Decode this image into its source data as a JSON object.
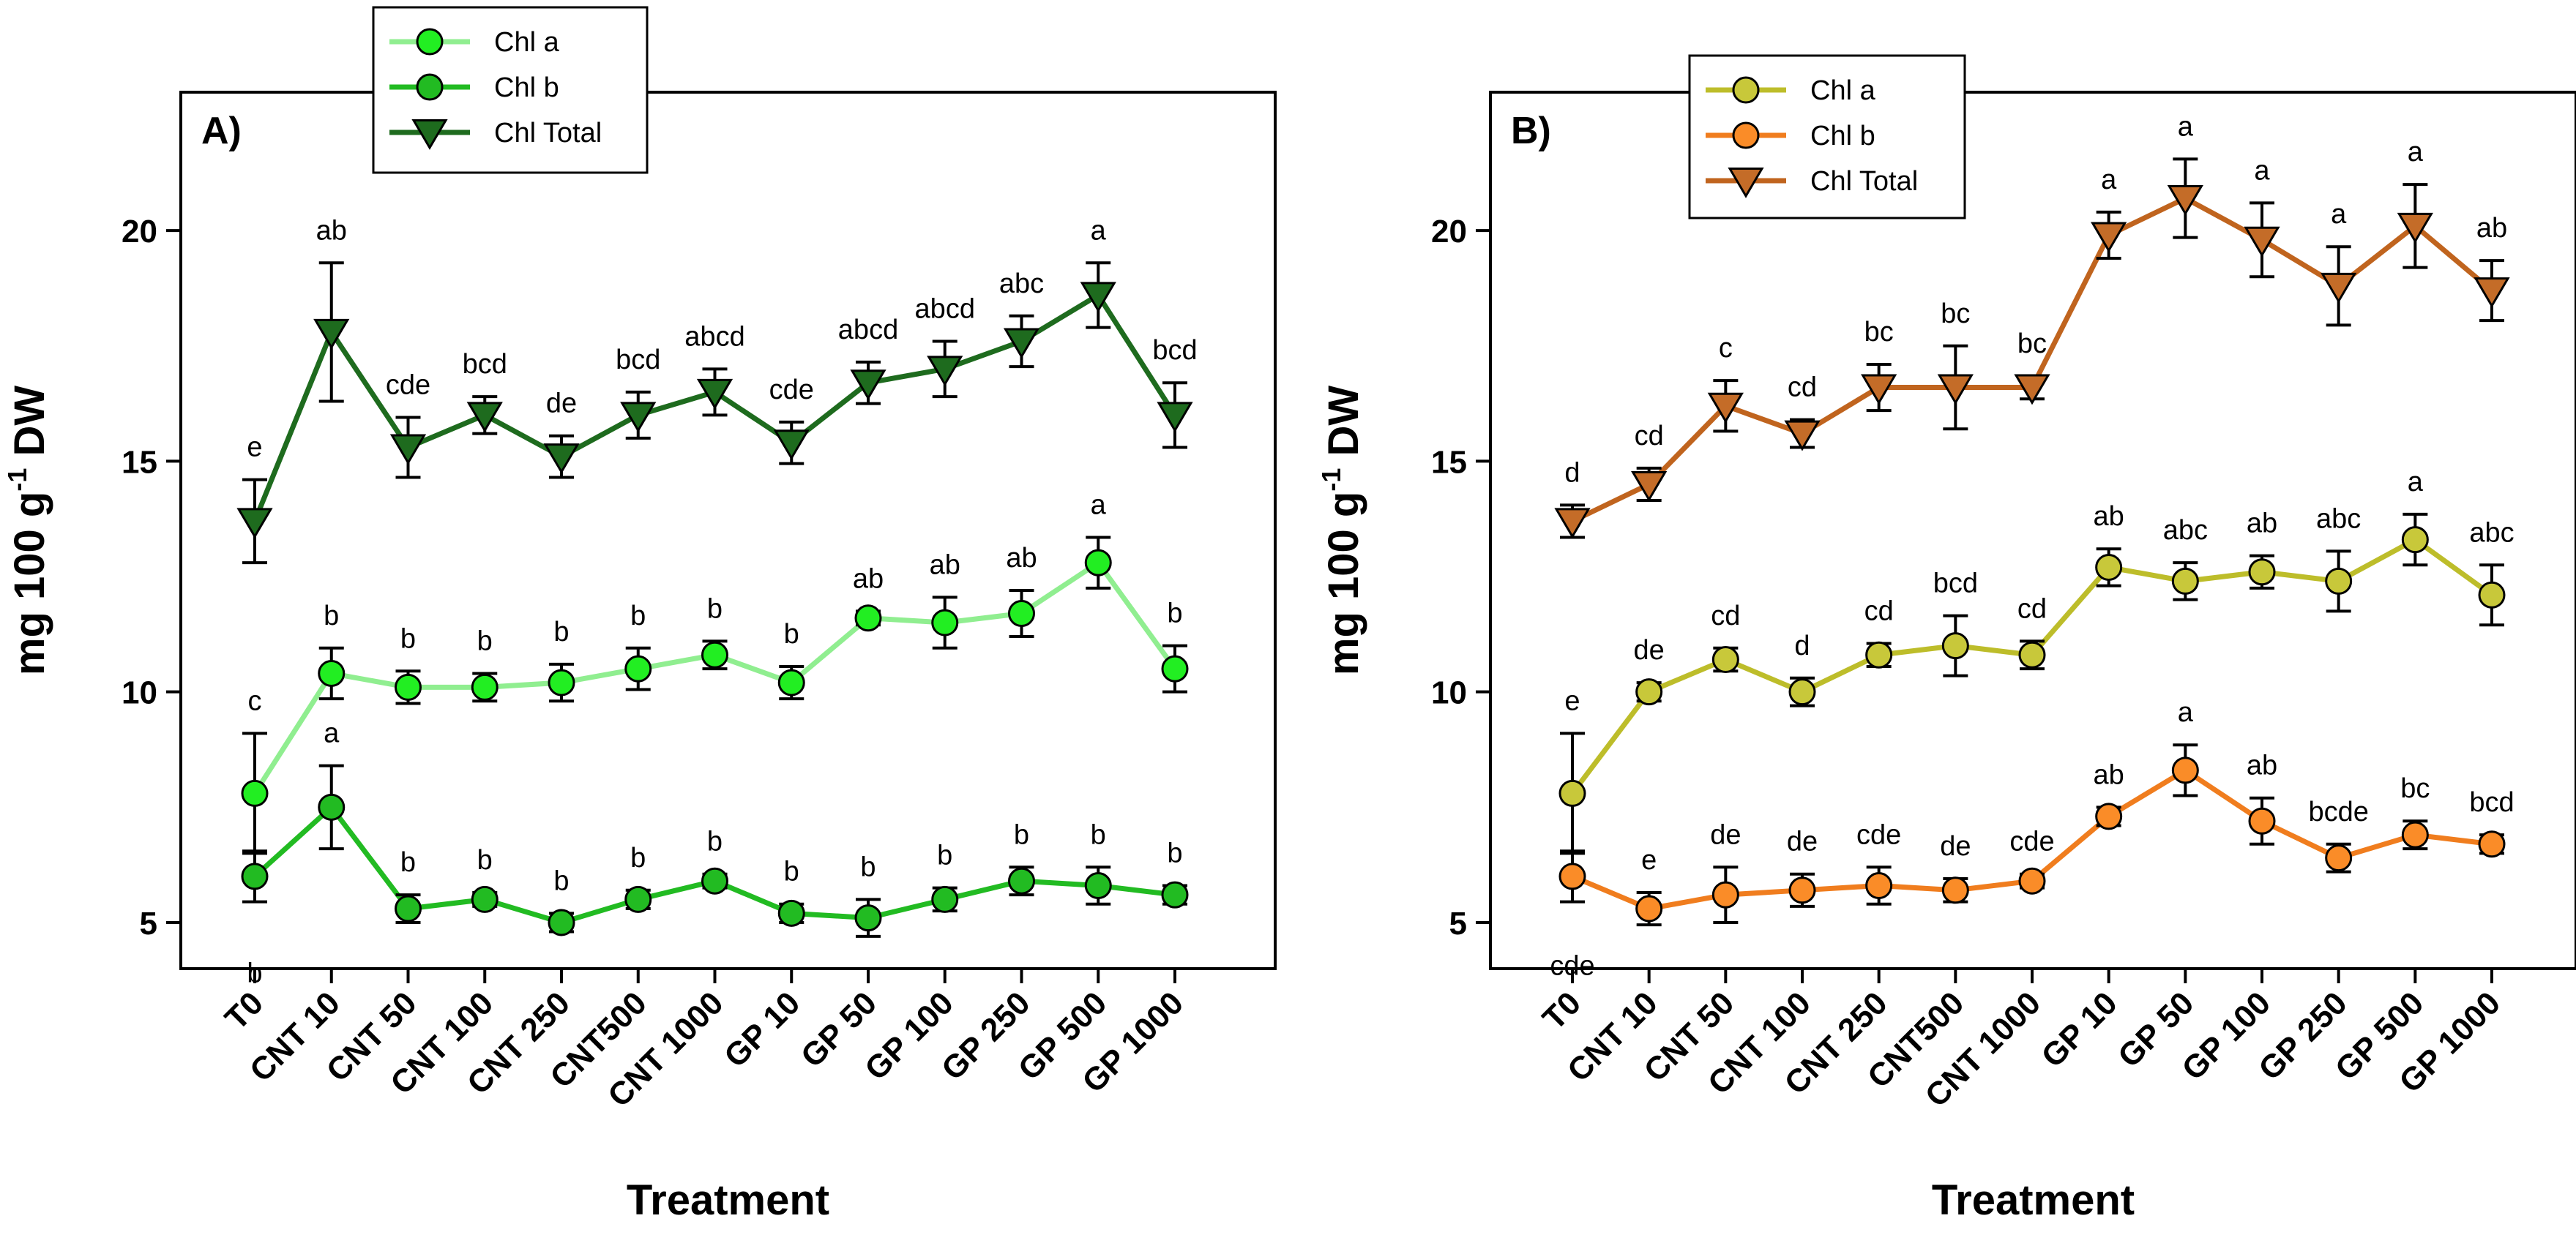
{
  "chart_data": [
    {
      "type": "line",
      "panel_label": "A)",
      "ylabel_main": "mg 100 g",
      "ylabel_sup": "-1",
      "ylabel_end": " DW",
      "xlabel": "Treatment",
      "ylim": [
        4,
        23
      ],
      "yticks": [
        5,
        10,
        15,
        20
      ],
      "categories": [
        "T0",
        "CNT 10",
        "CNT 50",
        "CNT 100",
        "CNT 250",
        "CNT500",
        "CNT 1000",
        "GP 10",
        "GP 50",
        "GP 100",
        "GP 250",
        "GP 500",
        "GP 1000"
      ],
      "legend_position": "top-left-outside",
      "series": [
        {
          "name": "Chl a",
          "marker": "circle",
          "line_color": "#90ee90",
          "marker_color": "#22ee22",
          "values": [
            7.8,
            10.4,
            10.1,
            10.1,
            10.2,
            10.5,
            10.8,
            10.2,
            11.6,
            11.5,
            11.7,
            12.8,
            10.5
          ],
          "errors": [
            1.3,
            0.55,
            0.35,
            0.3,
            0.4,
            0.45,
            0.3,
            0.35,
            0.15,
            0.55,
            0.5,
            0.55,
            0.5
          ],
          "letters": [
            "c",
            "b",
            "b",
            "b",
            "b",
            "b",
            "b",
            "b",
            "ab",
            "ab",
            "ab",
            "a",
            "b"
          ]
        },
        {
          "name": "Chl b",
          "marker": "circle",
          "line_color": "#22bb22",
          "marker_color": "#22bb22",
          "values": [
            6.0,
            7.5,
            5.3,
            5.5,
            5.0,
            5.5,
            5.9,
            5.2,
            5.1,
            5.5,
            5.9,
            5.8,
            5.6
          ],
          "errors": [
            0.55,
            0.9,
            0.3,
            0.15,
            0.2,
            0.2,
            0.15,
            0.2,
            0.4,
            0.25,
            0.3,
            0.4,
            0.2
          ],
          "letters": [
            "b",
            "a",
            "b",
            "b",
            "b",
            "b",
            "b",
            "b",
            "b",
            "b",
            "b",
            "b",
            "b"
          ]
        },
        {
          "name": "Chl Total",
          "marker": "triangle-down",
          "line_color": "#1e6b1e",
          "marker_color": "#1e6b1e",
          "values": [
            13.7,
            17.8,
            15.3,
            16.0,
            15.1,
            16.0,
            16.5,
            15.4,
            16.7,
            17.0,
            17.6,
            18.6,
            16.0
          ],
          "errors": [
            0.9,
            1.5,
            0.65,
            0.4,
            0.45,
            0.5,
            0.5,
            0.45,
            0.45,
            0.6,
            0.55,
            0.7,
            0.7
          ],
          "letters": [
            "e",
            "ab",
            "cde",
            "bcd",
            "de",
            "bcd",
            "abcd",
            "cde",
            "abcd",
            "abcd",
            "abc",
            "a",
            "bcd"
          ]
        }
      ]
    },
    {
      "type": "line",
      "panel_label": "B)",
      "ylabel_main": "mg 100 g",
      "ylabel_sup": "-1",
      "ylabel_end": " DW",
      "xlabel": "Treatment",
      "ylim": [
        4,
        23
      ],
      "yticks": [
        5,
        10,
        15,
        20
      ],
      "categories": [
        "T0",
        "CNT 10",
        "CNT 50",
        "CNT 100",
        "CNT 250",
        "CNT500",
        "CNT 1000",
        "GP 10",
        "GP 50",
        "GP 100",
        "GP 250",
        "GP 500",
        "GP 1000"
      ],
      "legend_position": "top-center-left",
      "series": [
        {
          "name": "Chl a",
          "marker": "circle",
          "line_color": "#bdbd2a",
          "marker_color": "#c8c83a",
          "values": [
            7.8,
            10.0,
            10.7,
            10.0,
            10.8,
            11.0,
            10.8,
            12.7,
            12.4,
            12.6,
            12.4,
            13.3,
            12.1
          ],
          "errors": [
            1.3,
            0.2,
            0.25,
            0.3,
            0.25,
            0.65,
            0.3,
            0.4,
            0.4,
            0.35,
            0.65,
            0.55,
            0.65
          ],
          "letters": [
            "e",
            "de",
            "cd",
            "d",
            "cd",
            "bcd",
            "cd",
            "ab",
            "abc",
            "ab",
            "abc",
            "a",
            "abc"
          ]
        },
        {
          "name": "Chl b",
          "marker": "circle",
          "line_color": "#f07d1e",
          "marker_color": "#fa8c28",
          "values": [
            6.0,
            5.3,
            5.6,
            5.7,
            5.8,
            5.7,
            5.9,
            7.3,
            8.3,
            7.2,
            6.4,
            6.9,
            6.7
          ],
          "errors": [
            0.55,
            0.35,
            0.6,
            0.35,
            0.4,
            0.25,
            0.15,
            0.2,
            0.55,
            0.5,
            0.3,
            0.3,
            0.2
          ],
          "letters": [
            "cde",
            "e",
            "de",
            "de",
            "cde",
            "de",
            "cde",
            "ab",
            "a",
            "ab",
            "bcde",
            "bc",
            "bcd"
          ]
        },
        {
          "name": "Chl Total",
          "marker": "triangle-down",
          "line_color": "#c0641e",
          "marker_color": "#c46c28",
          "values": [
            13.7,
            14.5,
            16.2,
            15.6,
            16.6,
            16.6,
            16.6,
            19.9,
            20.7,
            19.8,
            18.8,
            20.1,
            18.7
          ],
          "errors": [
            0.35,
            0.35,
            0.55,
            0.3,
            0.5,
            0.9,
            0.25,
            0.5,
            0.85,
            0.8,
            0.85,
            0.9,
            0.65
          ],
          "letters": [
            "d",
            "cd",
            "c",
            "cd",
            "bc",
            "bc",
            "bc",
            "a",
            "a",
            "a",
            "a",
            "a",
            "ab"
          ]
        }
      ]
    }
  ]
}
